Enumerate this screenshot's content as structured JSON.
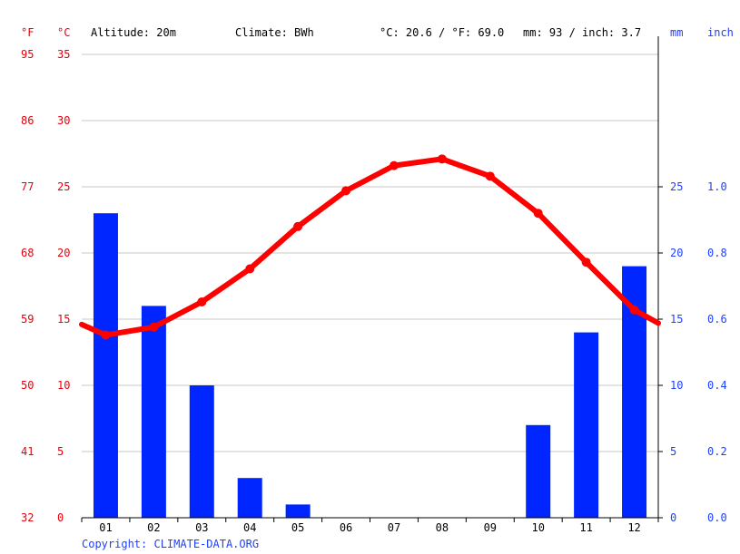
{
  "header": {
    "unit_f": "°F",
    "unit_c": "°C",
    "altitude": "Altitude: 20m",
    "climate": "Climate: BWh",
    "temp_avg": "°C: 20.6 / °F: 69.0",
    "precip_total": "mm: 93 / inch: 3.7",
    "unit_mm": "mm",
    "unit_inch": "inch"
  },
  "footer": {
    "copyright": "Copyright: CLIMATE-DATA.ORG"
  },
  "colors": {
    "temperature": "#ff0000",
    "precipitation": "#0026ff",
    "left_axis": "#e8000b",
    "right_axis": "#1f3fff"
  },
  "chart_data": {
    "type": "bar",
    "categories": [
      "01",
      "02",
      "03",
      "04",
      "05",
      "06",
      "07",
      "08",
      "09",
      "10",
      "11",
      "12"
    ],
    "series": [
      {
        "type": "bar",
        "axis": "right",
        "values": [
          23,
          16,
          10,
          3,
          1,
          0,
          0,
          0,
          0,
          7,
          14,
          19
        ]
      },
      {
        "type": "line",
        "axis": "left",
        "values": [
          13.8,
          14.4,
          16.3,
          18.8,
          22.0,
          24.7,
          26.6,
          27.1,
          25.8,
          23.0,
          19.3,
          15.7
        ]
      }
    ],
    "line_edge_values": {
      "start": 14.6,
      "end": 14.7
    },
    "y_left": {
      "ticks_c": [
        "35",
        "30",
        "25",
        "20",
        "15",
        "10",
        "5",
        "0"
      ],
      "ticks_f": [
        "95",
        "86",
        "77",
        "68",
        "59",
        "50",
        "41",
        "32"
      ],
      "ylim": [
        0,
        35
      ]
    },
    "y_right": {
      "ticks_mm": [
        "25",
        "20",
        "15",
        "10",
        "5",
        "0"
      ],
      "ticks_inch": [
        "1.0",
        "0.8",
        "0.6",
        "0.4",
        "0.2",
        "0.0"
      ],
      "ylim": [
        0,
        35
      ]
    },
    "grid": true
  }
}
